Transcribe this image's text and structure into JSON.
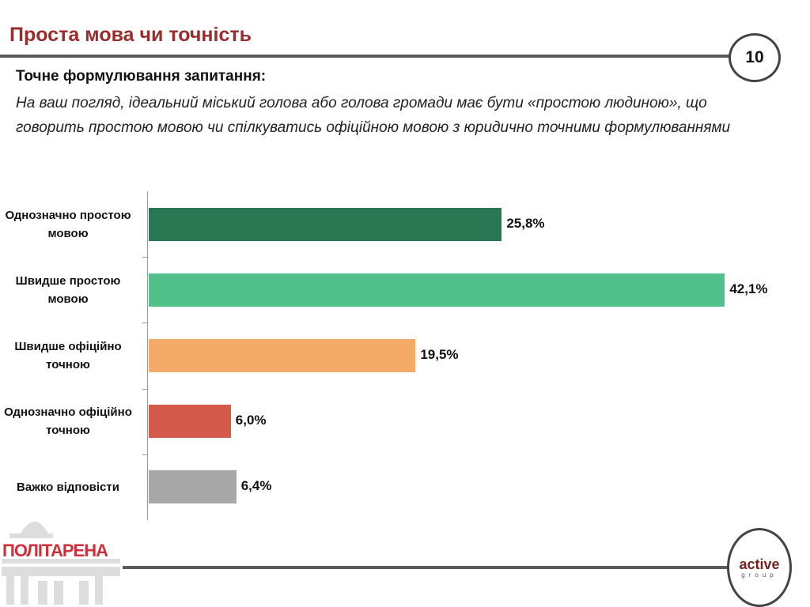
{
  "header": {
    "title": "Проста мова чи точність",
    "page_number": "10"
  },
  "question": {
    "heading": "Точне формулювання запитання:",
    "text": "На ваш погляд, ідеальний міський голова або голова громади має бути «простою людиною», що говорить простою мовою чи спілкуватись офіційною мовою з юридично точними формулюваннями"
  },
  "chart_data": {
    "type": "bar",
    "orientation": "horizontal",
    "categories": [
      "Однозначно простою мовою",
      "Швидше простою мовою",
      "Швидше офіційно точною",
      "Однозначно офіційно точною",
      "Важко відповісти"
    ],
    "values": [
      25.8,
      42.1,
      19.5,
      6.0,
      6.4
    ],
    "labels": [
      "25,8%",
      "42,1%",
      "19,5%",
      "6,0%",
      "6,4%"
    ],
    "colors": [
      "#2a7753",
      "#51c08a",
      "#f4ab68",
      "#d45b4b",
      "#a8a8a8"
    ],
    "unit": "%",
    "grid": false
  },
  "footer": {
    "left_logo": "ПОЛІТАРЕНА",
    "right_logo_main": "active",
    "right_logo_sub": "group"
  }
}
